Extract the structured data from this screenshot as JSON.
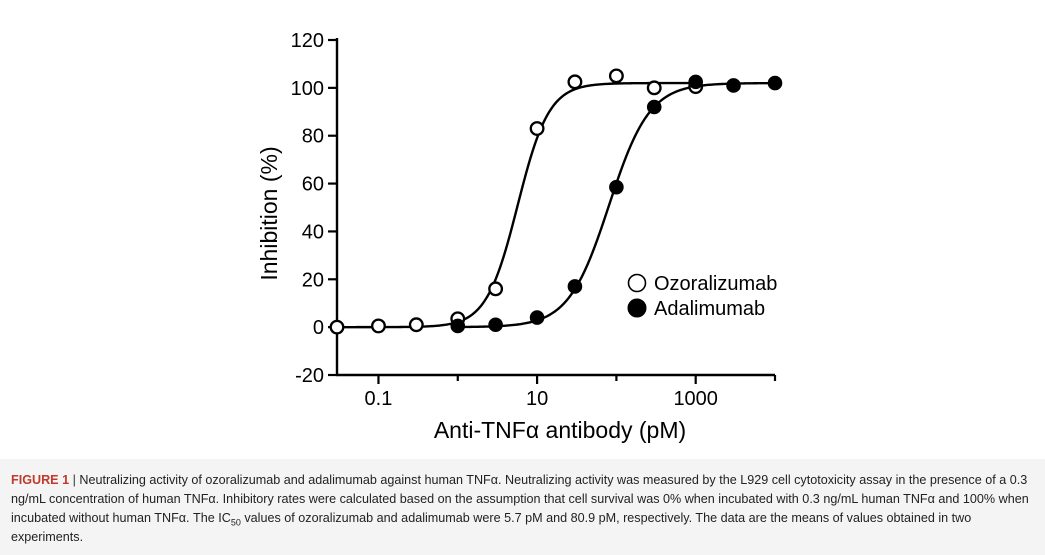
{
  "chart_data": {
    "type": "scatter",
    "xscale": "log",
    "xlim": [
      0.03,
      10000
    ],
    "ylim": [
      -20,
      120
    ],
    "xticks": [
      0.1,
      10,
      1000
    ],
    "x_tick_labels": [
      "0.1",
      "10",
      "1000"
    ],
    "yticks": [
      -20,
      0,
      20,
      40,
      60,
      80,
      100,
      120
    ],
    "y_tick_labels": [
      "-20",
      "0",
      "20",
      "40",
      "60",
      "80",
      "100",
      "120"
    ],
    "xlabel": "Anti-TNFα antibody (pM)",
    "ylabel": "Inhibition (%)",
    "title": "",
    "grid": false,
    "legend_position": "lower-right",
    "series": [
      {
        "name": "Ozoralizumab",
        "marker": "open-circle",
        "fit": {
          "bottom": 0,
          "top": 102,
          "ic50": 5.7,
          "hill": 2.2
        },
        "x": [
          0.03,
          0.1,
          0.3,
          1,
          3,
          10,
          30,
          100,
          300,
          1000
        ],
        "y": [
          0,
          0.5,
          1,
          3.5,
          16,
          83,
          102.5,
          105,
          100,
          100.5
        ]
      },
      {
        "name": "Adalimumab",
        "marker": "filled-circle",
        "fit": {
          "bottom": 0,
          "top": 102,
          "ic50": 80.9,
          "hill": 1.7
        },
        "x": [
          1,
          3,
          10,
          30,
          100,
          300,
          1000,
          3000,
          10000
        ],
        "y": [
          0.5,
          1,
          4,
          17,
          58.5,
          92,
          102.5,
          101,
          102
        ]
      }
    ]
  },
  "caption": {
    "label": "FIGURE 1",
    "separator": "|",
    "text_part1": "Neutralizing activity of ozoralizumab and adalimumab against human TNFα. Neutralizing activity was measured by the L929 cell cytotoxicity assay in the presence of a 0.3 ng/mL concentration of human TNFα. Inhibitory rates were calculated based on the assumption that cell survival was 0% when incubated with 0.3 ng/mL human TNFα and 100% when incubated without human TNFα. The IC",
    "subscript": "50",
    "text_part2": " values of ozoralizumab and adalimumab were 5.7 pM and 80.9 pM, respectively. The data are the means of values obtained in two experiments."
  }
}
